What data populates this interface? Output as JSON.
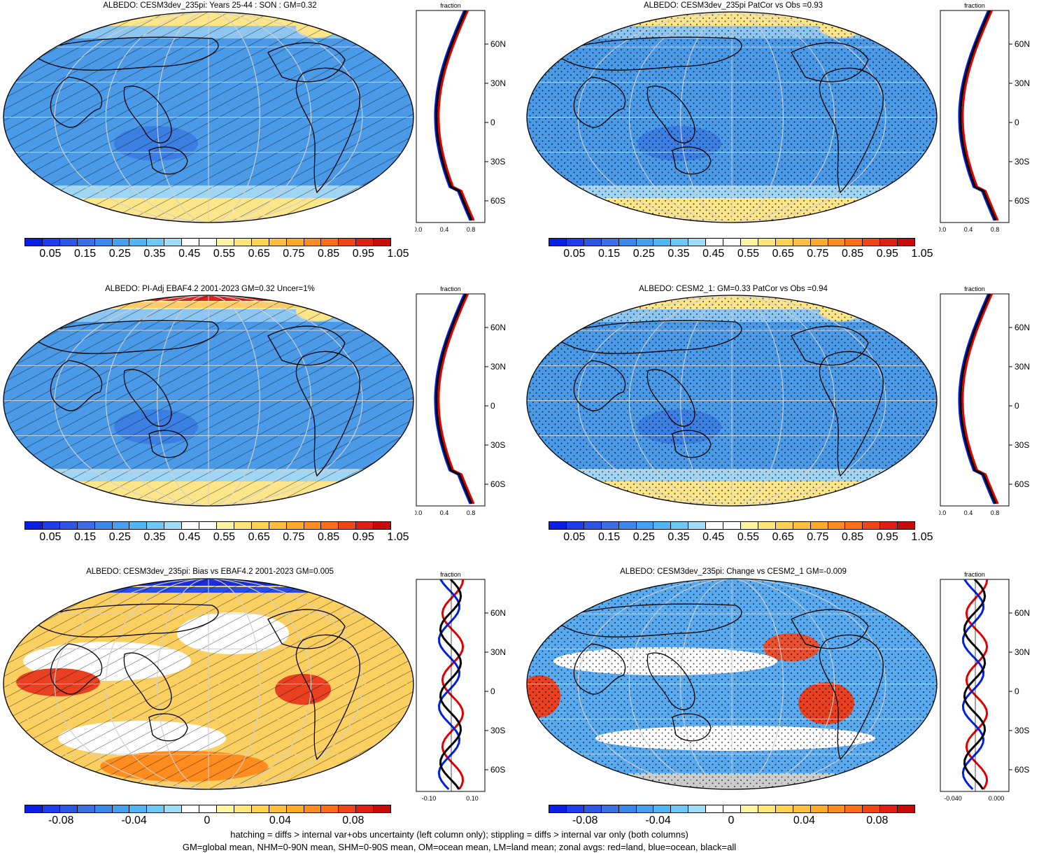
{
  "panels": [
    {
      "title": "ALBEDO: CESM3dev_235pi: Years 25-44 : SON : GM=0.32",
      "zonal_label": "fraction",
      "zonal_xticks": [
        "0.0",
        "0.4",
        "0.8"
      ],
      "lat_ticks": [
        "60N",
        "30N",
        "0",
        "30S",
        "60S"
      ],
      "cbar_labels": [
        "0.05",
        "0.15",
        "0.25",
        "0.35",
        "0.45",
        "0.55",
        "0.65",
        "0.75",
        "0.85",
        "0.95",
        "1.05"
      ],
      "overlay": "hatching"
    },
    {
      "title": "ALBEDO: CESM3dev_235pi PatCor vs Obs =0.93",
      "zonal_label": "fraction",
      "zonal_xticks": [
        "0.0",
        "0.4",
        "0.8"
      ],
      "lat_ticks": [
        "60N",
        "30N",
        "0",
        "30S",
        "60S"
      ],
      "cbar_labels": [
        "0.05",
        "0.15",
        "0.25",
        "0.35",
        "0.45",
        "0.55",
        "0.65",
        "0.75",
        "0.85",
        "0.95",
        "1.05"
      ],
      "overlay": "stippling"
    },
    {
      "title": "ALBEDO: PI-Adj EBAF4.2 2001-2023 GM=0.32 Uncer=1%",
      "zonal_label": "fraction",
      "zonal_xticks": [
        "0.0",
        "0.4",
        "0.8"
      ],
      "lat_ticks": [
        "60N",
        "30N",
        "0",
        "30S",
        "60S"
      ],
      "cbar_labels": [
        "0.05",
        "0.15",
        "0.25",
        "0.35",
        "0.45",
        "0.55",
        "0.65",
        "0.75",
        "0.85",
        "0.95",
        "1.05"
      ],
      "overlay": "hatching"
    },
    {
      "title": "ALBEDO: CESM2_1: GM=0.33 PatCor vs Obs =0.94",
      "zonal_label": "fraction",
      "zonal_xticks": [
        "0.0",
        "0.4",
        "0.8"
      ],
      "lat_ticks": [
        "60N",
        "30N",
        "0",
        "30S",
        "60S"
      ],
      "cbar_labels": [
        "0.05",
        "0.15",
        "0.25",
        "0.35",
        "0.45",
        "0.55",
        "0.65",
        "0.75",
        "0.85",
        "0.95",
        "1.05"
      ],
      "overlay": "stippling"
    },
    {
      "title": "ALBEDO: CESM3dev_235pi: Bias vs EBAF4.2 2001-2023  GM=0.005",
      "zonal_label": "fraction",
      "zonal_xticks": [
        "-0.10",
        "0.10"
      ],
      "lat_ticks": [
        "60N",
        "30N",
        "0",
        "30S",
        "60S"
      ],
      "cbar_labels": [
        "-0.08",
        "-0.04",
        "0",
        "0.04",
        "0.08"
      ],
      "overlay": "hatching"
    },
    {
      "title": "ALBEDO: CESM3dev_235pi: Change vs CESM2_1 GM=-0.009",
      "zonal_label": "fraction",
      "zonal_xticks": [
        "-0.040",
        "0.000"
      ],
      "lat_ticks": [
        "60N",
        "30N",
        "0",
        "30S",
        "60S"
      ],
      "cbar_labels": [
        "-0.08",
        "-0.04",
        "0",
        "0.04",
        "0.08"
      ],
      "overlay": "stippling"
    }
  ],
  "colors": {
    "abs_scale": [
      "#0a1ee6",
      "#1e3ceb",
      "#2d55e6",
      "#3c6ee6",
      "#3c87eb",
      "#46a0f0",
      "#50b4f5",
      "#6ec8f5",
      "#a0dcf5",
      "#ffffff",
      "#ffffff",
      "#fff5a0",
      "#ffe678",
      "#ffd250",
      "#ffbe3c",
      "#ffaa28",
      "#ff8c1e",
      "#ff6e14",
      "#f04614",
      "#e11e14",
      "#c80a0a"
    ],
    "diff_scale": [
      "#0a1ee6",
      "#1e3ceb",
      "#2d55e6",
      "#3c6ee6",
      "#3c87eb",
      "#46a0f0",
      "#50b4f5",
      "#6ec8f5",
      "#a0dcf5",
      "#ffffff",
      "#ffffff",
      "#fff5a0",
      "#ffe678",
      "#ffd250",
      "#ffbe3c",
      "#ffaa28",
      "#ff8c1e",
      "#ff6e14",
      "#f04614",
      "#e11e14",
      "#c80a0a"
    ],
    "land_line": "#e00000",
    "ocean_line": "#0020e0",
    "all_line": "#000000"
  },
  "footer": {
    "line1": "hatching = diffs > internal var+obs uncertainty (left column only); stippling = diffs > internal var only (both columns)",
    "line2": "GM=global mean, NHM=0-90N mean, SHM=0-90S mean, OM=ocean mean, LM=land mean; zonal avgs: red=land, blue=ocean, black=all"
  }
}
